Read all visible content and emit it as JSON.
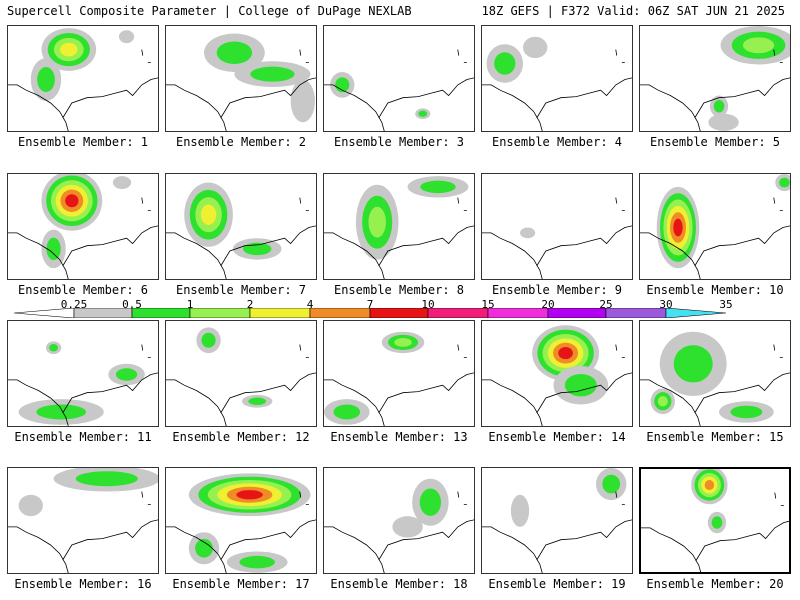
{
  "header": {
    "left_title": "Supercell Composite Parameter | College of DuPage NEXLAB",
    "right_title": "18Z GEFS | F372 Valid: 06Z SAT JUN 21 2025"
  },
  "colorbar": {
    "ticks": [
      "0.25",
      "0.5",
      "1",
      "2",
      "4",
      "7",
      "10",
      "15",
      "20",
      "25",
      "30",
      "35"
    ],
    "colors": [
      "#c8c8c8",
      "#2ee12e",
      "#96f050",
      "#f0f032",
      "#f08c28",
      "#e61414",
      "#f01e78",
      "#f02ddc",
      "#b400f0",
      "#9b5adc",
      "#46e1f0"
    ]
  },
  "members": [
    {
      "label": "Ensemble Member: 1",
      "blobs": [
        [
          0.4,
          0.22,
          0.18,
          0.2,
          3
        ],
        [
          0.25,
          0.5,
          0.1,
          0.2,
          1
        ],
        [
          0.78,
          0.1,
          0.05,
          0.06,
          0
        ]
      ]
    },
    {
      "label": "Ensemble Member: 2",
      "blobs": [
        [
          0.45,
          0.25,
          0.2,
          0.18,
          1
        ],
        [
          0.7,
          0.45,
          0.25,
          0.12,
          1
        ],
        [
          0.9,
          0.7,
          0.08,
          0.2,
          0
        ]
      ]
    },
    {
      "label": "Ensemble Member: 3",
      "blobs": [
        [
          0.12,
          0.55,
          0.08,
          0.12,
          1
        ],
        [
          0.65,
          0.82,
          0.05,
          0.05,
          1
        ]
      ]
    },
    {
      "label": "Ensemble Member: 4",
      "blobs": [
        [
          0.15,
          0.35,
          0.12,
          0.18,
          1
        ],
        [
          0.35,
          0.2,
          0.08,
          0.1,
          0
        ]
      ]
    },
    {
      "label": "Ensemble Member: 5",
      "blobs": [
        [
          0.78,
          0.18,
          0.25,
          0.18,
          2
        ],
        [
          0.52,
          0.75,
          0.06,
          0.1,
          1
        ],
        [
          0.55,
          0.9,
          0.1,
          0.08,
          0
        ]
      ]
    },
    {
      "label": "Ensemble Member: 6",
      "blobs": [
        [
          0.42,
          0.25,
          0.2,
          0.28,
          5
        ],
        [
          0.3,
          0.7,
          0.08,
          0.18,
          1
        ],
        [
          0.75,
          0.08,
          0.06,
          0.06,
          0
        ]
      ]
    },
    {
      "label": "Ensemble Member: 7",
      "blobs": [
        [
          0.28,
          0.38,
          0.16,
          0.3,
          3
        ],
        [
          0.6,
          0.7,
          0.16,
          0.1,
          1
        ]
      ]
    },
    {
      "label": "Ensemble Member: 8",
      "blobs": [
        [
          0.35,
          0.45,
          0.14,
          0.35,
          2
        ],
        [
          0.75,
          0.12,
          0.2,
          0.1,
          1
        ]
      ]
    },
    {
      "label": "Ensemble Member: 9",
      "blobs": [
        [
          0.3,
          0.55,
          0.05,
          0.05,
          0
        ]
      ]
    },
    {
      "label": "Ensemble Member: 10",
      "blobs": [
        [
          0.25,
          0.5,
          0.14,
          0.38,
          5
        ],
        [
          0.95,
          0.08,
          0.06,
          0.08,
          1
        ]
      ]
    },
    {
      "label": "Ensemble Member: 11",
      "blobs": [
        [
          0.35,
          0.85,
          0.28,
          0.12,
          1
        ],
        [
          0.78,
          0.5,
          0.12,
          0.1,
          1
        ],
        [
          0.3,
          0.25,
          0.05,
          0.06,
          1
        ]
      ]
    },
    {
      "label": "Ensemble Member: 12",
      "blobs": [
        [
          0.28,
          0.18,
          0.08,
          0.12,
          1
        ],
        [
          0.6,
          0.75,
          0.1,
          0.06,
          1
        ]
      ]
    },
    {
      "label": "Ensemble Member: 13",
      "blobs": [
        [
          0.52,
          0.2,
          0.14,
          0.1,
          2
        ],
        [
          0.15,
          0.85,
          0.15,
          0.12,
          1
        ]
      ]
    },
    {
      "label": "Ensemble Member: 14",
      "blobs": [
        [
          0.55,
          0.3,
          0.22,
          0.26,
          5
        ],
        [
          0.65,
          0.6,
          0.18,
          0.18,
          1
        ]
      ]
    },
    {
      "label": "Ensemble Member: 15",
      "blobs": [
        [
          0.35,
          0.4,
          0.22,
          0.3,
          1
        ],
        [
          0.15,
          0.75,
          0.08,
          0.12,
          2
        ],
        [
          0.7,
          0.85,
          0.18,
          0.1,
          1
        ]
      ]
    },
    {
      "label": "Ensemble Member: 16",
      "blobs": [
        [
          0.65,
          0.1,
          0.35,
          0.12,
          1
        ],
        [
          0.15,
          0.35,
          0.08,
          0.1,
          0
        ]
      ]
    },
    {
      "label": "Ensemble Member: 17",
      "blobs": [
        [
          0.55,
          0.25,
          0.4,
          0.2,
          5
        ],
        [
          0.25,
          0.75,
          0.1,
          0.15,
          1
        ],
        [
          0.6,
          0.88,
          0.2,
          0.1,
          1
        ]
      ]
    },
    {
      "label": "Ensemble Member: 18",
      "blobs": [
        [
          0.7,
          0.32,
          0.12,
          0.22,
          1
        ],
        [
          0.55,
          0.55,
          0.1,
          0.1,
          0
        ]
      ]
    },
    {
      "label": "Ensemble Member: 19",
      "blobs": [
        [
          0.85,
          0.15,
          0.1,
          0.15,
          1
        ],
        [
          0.25,
          0.4,
          0.06,
          0.15,
          0
        ]
      ]
    },
    {
      "label": "Ensemble Member: 20",
      "blobs": [
        [
          0.45,
          0.15,
          0.12,
          0.18,
          4
        ],
        [
          0.5,
          0.5,
          0.06,
          0.1,
          1
        ]
      ]
    }
  ]
}
